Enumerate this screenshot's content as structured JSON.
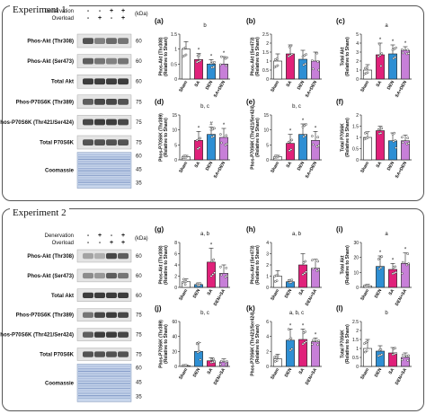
{
  "experiments": [
    {
      "title": "Experiment 1",
      "header": {
        "rows": [
          {
            "label": "Denervation",
            "signs": [
              "-",
              "-",
              "+",
              "+"
            ]
          },
          {
            "label": "Overload",
            "signs": [
              "-",
              "+",
              "-",
              "+"
            ]
          }
        ],
        "kda": "(kDa)"
      },
      "blots": [
        {
          "label": "Phos-Akt (Thr308)",
          "mw": [
            "60"
          ],
          "intensity": [
            0.75,
            0.55,
            0.65,
            0.6
          ]
        },
        {
          "label": "Phos-Akt (Ser473)",
          "mw": [
            "60"
          ],
          "intensity": [
            0.7,
            0.6,
            0.55,
            0.6
          ]
        },
        {
          "label": "Total Akt",
          "mw": [
            "60"
          ],
          "intensity": [
            0.85,
            0.85,
            0.85,
            0.85
          ]
        },
        {
          "label": "Phos-P70S6K (Thr389)",
          "mw": [
            "75"
          ],
          "intensity": [
            0.7,
            0.8,
            0.8,
            0.75
          ]
        },
        {
          "label": "Phos-P70S6K (Thr421/Ser424)",
          "mw": [
            "75"
          ],
          "intensity": [
            0.8,
            0.85,
            0.85,
            0.8
          ]
        },
        {
          "label": "Total P70S6K",
          "mw": [
            "75"
          ],
          "intensity": [
            0.75,
            0.75,
            0.75,
            0.75
          ]
        },
        {
          "label": "Coomassie",
          "mw": [
            "60",
            "45",
            "35"
          ],
          "coomassie": true
        }
      ]
    },
    {
      "title": "Experiment 2",
      "header": {
        "rows": [
          {
            "label": "Denervation",
            "signs": [
              "-",
              "+",
              "-",
              "+"
            ]
          },
          {
            "label": "Overload",
            "signs": [
              "-",
              "-",
              "+",
              "+"
            ]
          }
        ],
        "kda": "(kDa)"
      },
      "blots": [
        {
          "label": "Phos-Akt (Thr308)",
          "mw": [
            "60"
          ],
          "intensity": [
            0.4,
            0.35,
            0.8,
            0.7
          ]
        },
        {
          "label": "Phos-Akt (Ser473)",
          "mw": [
            "60"
          ],
          "intensity": [
            0.5,
            0.45,
            0.7,
            0.6
          ]
        },
        {
          "label": "Total Akt",
          "mw": [
            "60"
          ],
          "intensity": [
            0.85,
            0.85,
            0.85,
            0.85
          ]
        },
        {
          "label": "Phos-P70S6K (Thr389)",
          "mw": [
            "75"
          ],
          "intensity": [
            0.6,
            0.8,
            0.85,
            0.8
          ]
        },
        {
          "label": "Phos-P70S6K (Thr421/Ser424)",
          "mw": [
            "75"
          ],
          "intensity": [
            0.7,
            0.85,
            0.85,
            0.8
          ]
        },
        {
          "label": "Total P70S6K",
          "mw": [
            "75"
          ],
          "intensity": [
            0.75,
            0.75,
            0.75,
            0.75
          ]
        },
        {
          "label": "Coomassie",
          "mw": [
            "60",
            "45",
            "35"
          ],
          "coomassie": true
        }
      ]
    }
  ],
  "chart_data": [
    {
      "panel": "(a)",
      "type": "bar",
      "ylabel": "Phos-Akt (Thr308)\n(Relative to Sham)",
      "categories": [
        "Sham",
        "SA",
        "DEN",
        "SA+DEN"
      ],
      "colors": [
        "#ffffff",
        "#e0217a",
        "#2e8fd4",
        "#c77fd8"
      ],
      "values": [
        1.0,
        0.65,
        0.5,
        0.5
      ],
      "errors": [
        0.25,
        0.2,
        0.15,
        0.25
      ],
      "ylim": [
        0,
        1.5
      ],
      "yticks": [
        "0",
        "0.5",
        "1",
        "1.5"
      ],
      "sig": "b",
      "marks": [
        "",
        "*",
        "*",
        "*"
      ]
    },
    {
      "panel": "(b)",
      "type": "bar",
      "ylabel": "Phos-Akt (Ser473)\n(Relative to Sham)",
      "categories": [
        "Sham",
        "SA",
        "DEN",
        "SA+DEN"
      ],
      "colors": [
        "#ffffff",
        "#e0217a",
        "#2e8fd4",
        "#c77fd8"
      ],
      "values": [
        1.0,
        1.4,
        1.1,
        1.0
      ],
      "errors": [
        0.4,
        0.5,
        0.5,
        0.5
      ],
      "ylim": [
        0,
        2.5
      ],
      "yticks": [
        "0",
        "0.5",
        "1",
        "1.5",
        "2",
        "2.5"
      ],
      "sig": "",
      "marks": [
        "",
        "",
        "",
        ""
      ]
    },
    {
      "panel": "(c)",
      "type": "bar",
      "ylabel": "Total Akt\n(Relative to Sham)",
      "categories": [
        "Sham",
        "SA",
        "DEN",
        "SA+DEN"
      ],
      "colors": [
        "#ffffff",
        "#e0217a",
        "#2e8fd4",
        "#c77fd8"
      ],
      "values": [
        1.0,
        2.7,
        2.8,
        3.2
      ],
      "errors": [
        0.6,
        1.3,
        1.0,
        0.4
      ],
      "ylim": [
        0,
        5
      ],
      "yticks": [
        "0",
        "1",
        "2",
        "3",
        "4",
        "5"
      ],
      "sig": "a",
      "marks": [
        "",
        "*",
        "*",
        "*"
      ]
    },
    {
      "panel": "(d)",
      "type": "bar",
      "ylabel": "Phos-P70S6K (Thr389)\n(Relative to Sham)",
      "categories": [
        "Sham",
        "SA",
        "DEN",
        "SA+DEN"
      ],
      "colors": [
        "#ffffff",
        "#e0217a",
        "#2e8fd4",
        "#c77fd8"
      ],
      "values": [
        1.0,
        6.5,
        8.5,
        7.5
      ],
      "errors": [
        0.5,
        3.0,
        2.5,
        3.0
      ],
      "ylim": [
        0,
        15
      ],
      "yticks": [
        "0",
        "5",
        "10",
        "15"
      ],
      "sig": "b, c",
      "marks": [
        "",
        "*",
        "#",
        "*"
      ]
    },
    {
      "panel": "(e)",
      "type": "bar",
      "ylabel": "Phos-P70S6K (Thr421/Ser424)\n(Relative to Sham)",
      "categories": [
        "Sham",
        "SA",
        "DEN",
        "SA+DEN"
      ],
      "colors": [
        "#ffffff",
        "#e0217a",
        "#2e8fd4",
        "#c77fd8"
      ],
      "values": [
        1.0,
        5.5,
        8.5,
        6.5
      ],
      "errors": [
        0.5,
        3.0,
        3.5,
        3.0
      ],
      "ylim": [
        0,
        15
      ],
      "yticks": [
        "0",
        "5",
        "10",
        "15"
      ],
      "sig": "b, c",
      "marks": [
        "",
        "*",
        "*",
        "*"
      ]
    },
    {
      "panel": "(f)",
      "type": "bar",
      "ylabel": "Total P70S6K\n(Relative to Sham)",
      "categories": [
        "Sham",
        "SA",
        "DEN",
        "SA+DEN"
      ],
      "colors": [
        "#ffffff",
        "#e0217a",
        "#2e8fd4",
        "#c77fd8"
      ],
      "values": [
        1.0,
        1.3,
        0.85,
        0.85
      ],
      "errors": [
        0.25,
        0.2,
        0.35,
        0.25
      ],
      "ylim": [
        0,
        2
      ],
      "yticks": [
        "0",
        "0.5",
        "1",
        "1.5",
        "2"
      ],
      "sig": "",
      "marks": [
        "",
        "",
        "",
        ""
      ]
    },
    {
      "panel": "(g)",
      "type": "bar",
      "ylabel": "Phos-Akt (Thr308)\n(Relative to Sham)",
      "categories": [
        "Sham",
        "DEN",
        "SA",
        "DEN+SA"
      ],
      "colors": [
        "#ffffff",
        "#2e8fd4",
        "#e0217a",
        "#c77fd8"
      ],
      "values": [
        1.0,
        0.5,
        4.5,
        2.5
      ],
      "errors": [
        0.5,
        0.3,
        2.5,
        1.5
      ],
      "ylim": [
        0,
        8
      ],
      "yticks": [
        "0",
        "2",
        "4",
        "6",
        "8"
      ],
      "sig": "a, b",
      "marks": [
        "",
        "",
        "*",
        ""
      ]
    },
    {
      "panel": "(h)",
      "type": "bar",
      "ylabel": "Phos-Akt (Ser473)\n(Relative to Sham)",
      "categories": [
        "Sham",
        "DEN",
        "SA",
        "DEN+SA"
      ],
      "colors": [
        "#ffffff",
        "#2e8fd4",
        "#e0217a",
        "#c77fd8"
      ],
      "values": [
        1.0,
        0.5,
        2.0,
        1.7
      ],
      "errors": [
        0.5,
        0.2,
        1.0,
        0.8
      ],
      "ylim": [
        0,
        4
      ],
      "yticks": [
        "0",
        "1",
        "2",
        "3",
        "4"
      ],
      "sig": "a, b",
      "marks": [
        "",
        "",
        "",
        ""
      ]
    },
    {
      "panel": "(i)",
      "type": "bar",
      "ylabel": "Total Akt\n(Relative to Sham)",
      "categories": [
        "Sham",
        "DEN",
        "SA",
        "DEN+SA"
      ],
      "colors": [
        "#ffffff",
        "#2e8fd4",
        "#e0217a",
        "#c77fd8"
      ],
      "values": [
        1.0,
        14.0,
        12.0,
        16.0
      ],
      "errors": [
        1.0,
        7.0,
        4.0,
        7.0
      ],
      "ylim": [
        0,
        30
      ],
      "yticks": [
        "0",
        "10",
        "20",
        "30"
      ],
      "sig": "a",
      "marks": [
        "",
        "*",
        "*",
        "*"
      ]
    },
    {
      "panel": "(j)",
      "type": "bar",
      "ylabel": "Phos-P70S6K (Thr389)\n(Relative to Sham)",
      "categories": [
        "Sham",
        "DEN",
        "SA",
        "DEN+SA"
      ],
      "colors": [
        "#ffffff",
        "#2e8fd4",
        "#e0217a",
        "#c77fd8"
      ],
      "values": [
        1.0,
        20.0,
        7.5,
        6.0
      ],
      "errors": [
        1.0,
        12.0,
        4.0,
        4.0
      ],
      "ylim": [
        0,
        60
      ],
      "yticks": [
        "0",
        "20",
        "40",
        "60"
      ],
      "sig": "b, c",
      "marks": [
        "",
        "",
        "",
        ""
      ]
    },
    {
      "panel": "(k)",
      "type": "bar",
      "ylabel": "Phos-P70S6K (Thr421/Ser424)\n(Relative to Sham)",
      "categories": [
        "Sham",
        "DEN",
        "SA",
        "DEN+SA"
      ],
      "colors": [
        "#ffffff",
        "#2e8fd4",
        "#e0217a",
        "#c77fd8"
      ],
      "values": [
        1.0,
        3.5,
        3.6,
        3.3
      ],
      "errors": [
        0.6,
        1.5,
        1.4,
        0.5
      ],
      "ylim": [
        0,
        6
      ],
      "yticks": [
        "0",
        "2",
        "4",
        "6"
      ],
      "sig": "a, b, c",
      "marks": [
        "",
        "*",
        "*",
        "*"
      ]
    },
    {
      "panel": "(l)",
      "type": "bar",
      "ylabel": "Total P70S6K\n(Relative to Sham)",
      "categories": [
        "Sham",
        "DEN",
        "SA",
        "DEN+SA"
      ],
      "colors": [
        "#ffffff",
        "#2e8fd4",
        "#e0217a",
        "#c77fd8"
      ],
      "values": [
        1.0,
        0.85,
        0.75,
        0.5
      ],
      "errors": [
        0.5,
        0.3,
        0.3,
        0.25
      ],
      "ylim": [
        0,
        2.5
      ],
      "yticks": [
        "0",
        "0.5",
        "1",
        "1.5",
        "2",
        "2.5"
      ],
      "sig": "b",
      "marks": [
        "",
        "",
        "",
        ""
      ]
    }
  ]
}
